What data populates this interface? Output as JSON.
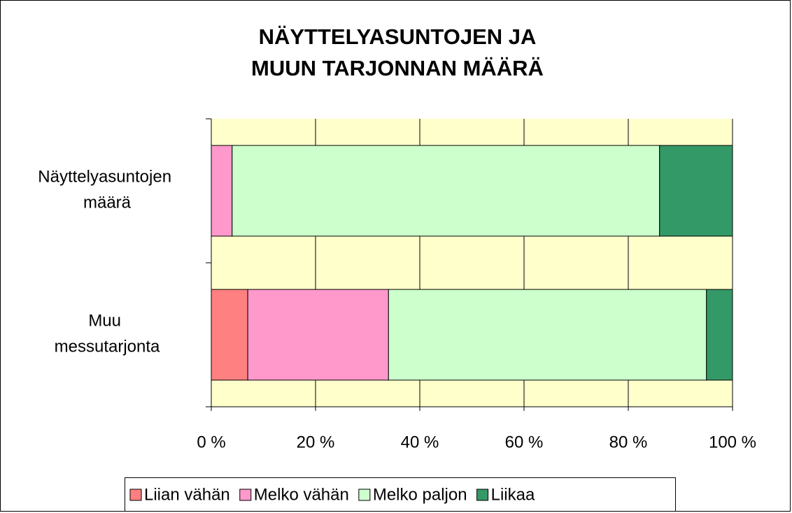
{
  "chart_data": {
    "type": "stacked_barh",
    "title": [
      "NÄYTTELYASUNTOJEN JA",
      "MUUN TARJONNAN MÄÄRÄ"
    ],
    "categories": [
      "Näyttelyasuntojen määrä",
      "Muu messutarjonta"
    ],
    "series": [
      {
        "name": "Liian vähän",
        "color": "#FF8080",
        "values": [
          0,
          7
        ]
      },
      {
        "name": "Melko vähän",
        "color": "#FF99CC",
        "values": [
          4,
          27
        ]
      },
      {
        "name": "Melko paljon",
        "color": "#CCFFCC",
        "values": [
          82,
          61
        ]
      },
      {
        "name": "Liikaa",
        "color": "#339966",
        "values": [
          14,
          5
        ]
      }
    ],
    "xlim": [
      0,
      100
    ],
    "xticks": [
      {
        "value": 0,
        "label": "0 %"
      },
      {
        "value": 20,
        "label": "20 %"
      },
      {
        "value": 40,
        "label": "40 %"
      },
      {
        "value": 60,
        "label": "60 %"
      },
      {
        "value": 80,
        "label": "80 %"
      },
      {
        "value": 100,
        "label": "100 %"
      }
    ],
    "grid": true,
    "legend": "bottom",
    "plot_background": "#FFFFCC"
  }
}
